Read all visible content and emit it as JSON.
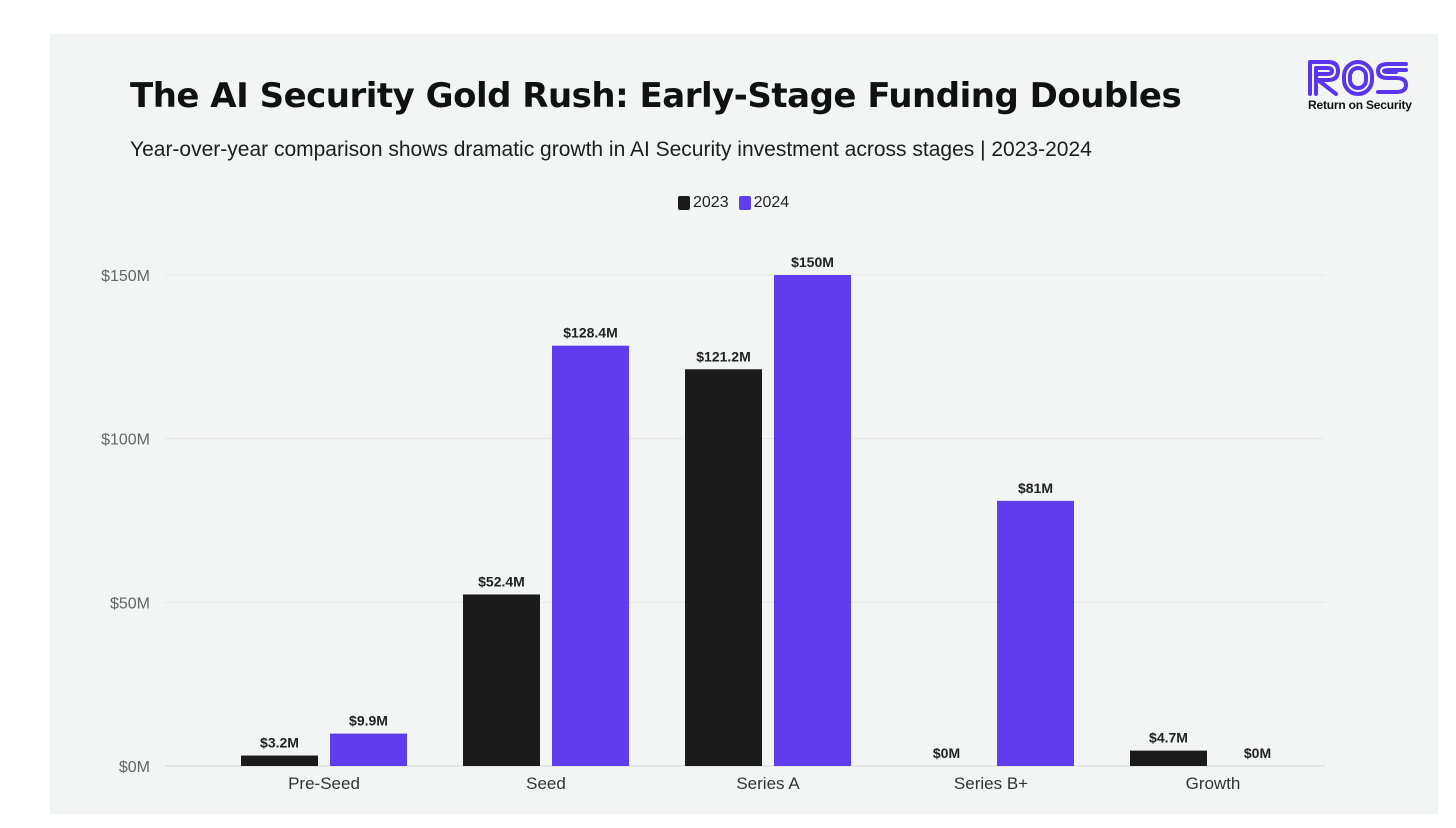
{
  "header": {
    "title": "The AI Security Gold Rush: Early-Stage Funding Doubles",
    "subtitle": "Year-over-year comparison shows dramatic growth in AI Security investment across stages | 2023-2024"
  },
  "logo": {
    "mark": "ROS",
    "text": "Return on Security",
    "color": "#5b35ee"
  },
  "legend": {
    "items": [
      {
        "label": "2023",
        "color": "#1b1b1b"
      },
      {
        "label": "2024",
        "color": "#603cef"
      }
    ]
  },
  "chart_data": {
    "type": "bar",
    "title": "The AI Security Gold Rush: Early-Stage Funding Doubles",
    "xlabel": "",
    "ylabel": "",
    "categories": [
      "Pre-Seed",
      "Seed",
      "Series A",
      "Series B+",
      "Growth"
    ],
    "series": [
      {
        "name": "2023",
        "color": "#1b1b1b",
        "values": [
          3.2,
          52.4,
          121.2,
          0,
          4.7
        ],
        "labels": [
          "$3.2M",
          "$52.4M",
          "$121.2M",
          "$0M",
          "$4.7M"
        ]
      },
      {
        "name": "2024",
        "color": "#603cef",
        "values": [
          9.9,
          128.4,
          150,
          81,
          0
        ],
        "labels": [
          "$9.9M",
          "$128.4M",
          "$150M",
          "$81M",
          "$0M"
        ]
      }
    ],
    "ylim": [
      0,
      150
    ],
    "yticks": [
      0,
      50,
      100,
      150
    ],
    "ytick_labels": [
      "$0M",
      "$50M",
      "$100M",
      "$150M"
    ],
    "grid": true,
    "legend_position": "top-center"
  }
}
